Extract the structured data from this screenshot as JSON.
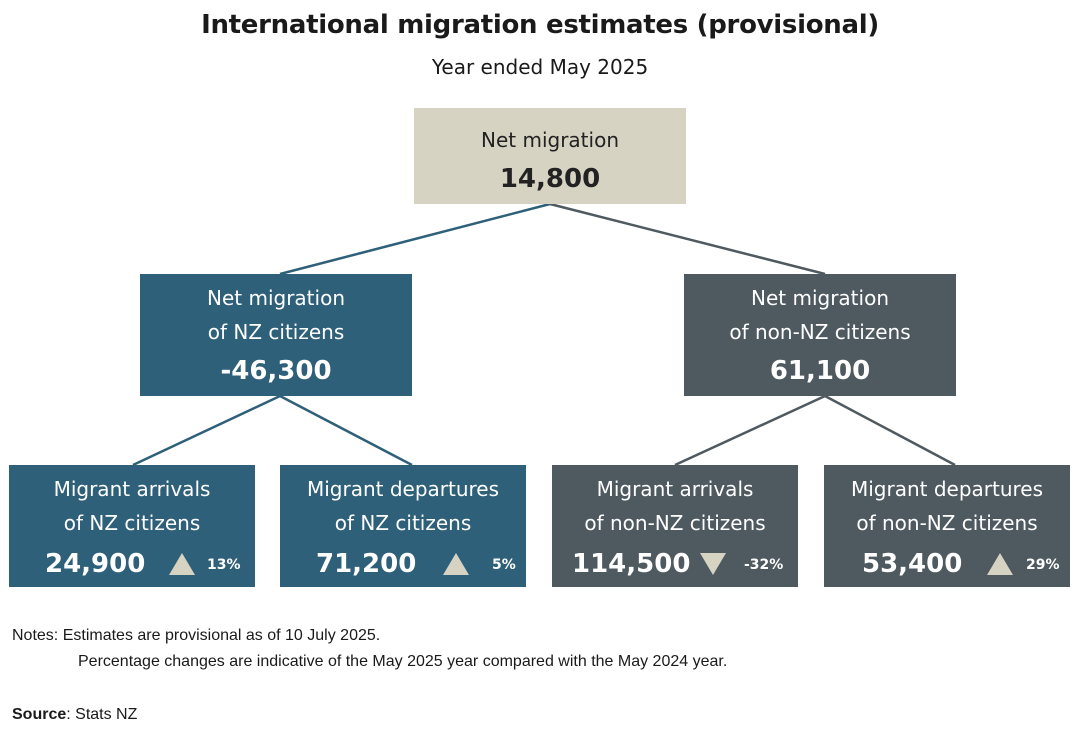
{
  "title": "International migration estimates (provisional)",
  "subtitle": "Year ended May 2025",
  "colors": {
    "root_fill": "#d6d3c3",
    "nz_fill": "#2f6079",
    "non_nz_fill": "#4f5960",
    "triangle": "#d6d3c3",
    "nz_line": "#2f6079",
    "non_nz_line": "#4f5960"
  },
  "root": {
    "label": "Net migration",
    "value": "14,800"
  },
  "nz": {
    "line1": "Net migration",
    "line2": "of NZ citizens",
    "value": "-46,300"
  },
  "non_nz": {
    "line1": "Net migration",
    "line2": "of non-NZ citizens",
    "value": "61,100"
  },
  "leaves": [
    {
      "line1": "Migrant arrivals",
      "line2": "of NZ citizens",
      "value": "24,900",
      "direction": "up",
      "change": "13%"
    },
    {
      "line1": "Migrant departures",
      "line2": "of NZ citizens",
      "value": "71,200",
      "direction": "up",
      "change": "5%"
    },
    {
      "line1": "Migrant arrivals",
      "line2": "of non-NZ citizens",
      "value": "114,500",
      "direction": "down",
      "change": "-32%"
    },
    {
      "line1": "Migrant departures",
      "line2": "of non-NZ citizens",
      "value": "53,400",
      "direction": "up",
      "change": "29%"
    }
  ],
  "notes": {
    "label": "Notes:",
    "line1": "Estimates are provisional as of 10 July 2025.",
    "line2": "Percentage changes are indicative of the May 2025 year compared with the May 2024 year."
  },
  "source": {
    "label": "Source",
    "text": ": Stats NZ"
  }
}
